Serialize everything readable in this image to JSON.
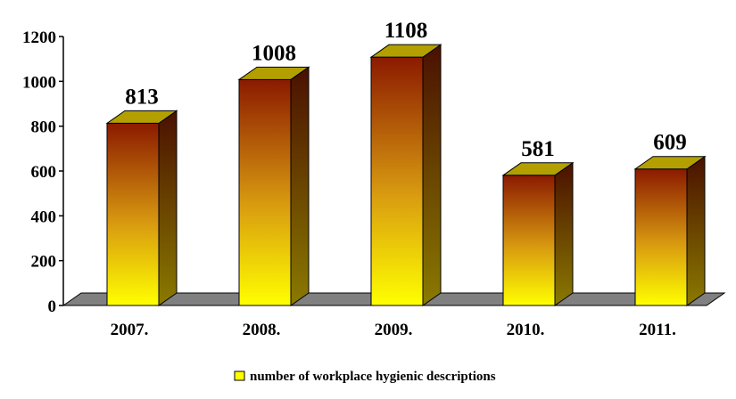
{
  "chart_data": {
    "type": "bar",
    "categories": [
      "2007.",
      "2008.",
      "2009.",
      "2010.",
      "2011."
    ],
    "series": [
      {
        "name": "number of workplace hygienic descriptions",
        "values": [
          813,
          1008,
          1108,
          581,
          609
        ]
      }
    ],
    "data_labels": [
      "813",
      "1008",
      "1108",
      "581",
      "609"
    ],
    "yticks": [
      0,
      200,
      400,
      600,
      800,
      1000,
      1200
    ],
    "ylim": [
      0,
      1200
    ],
    "title": "",
    "xlabel": "",
    "ylabel": "",
    "grid": false,
    "legend_position": "bottom",
    "colors": {
      "bar_top": "#8b1a00",
      "bar_mid": "#c87f10",
      "bar_bottom": "#ffff00",
      "bar_side": "#6b5a00",
      "bar_cap": "#b3a000",
      "floor": "#808080",
      "legend_swatch": "#ffff00"
    }
  }
}
